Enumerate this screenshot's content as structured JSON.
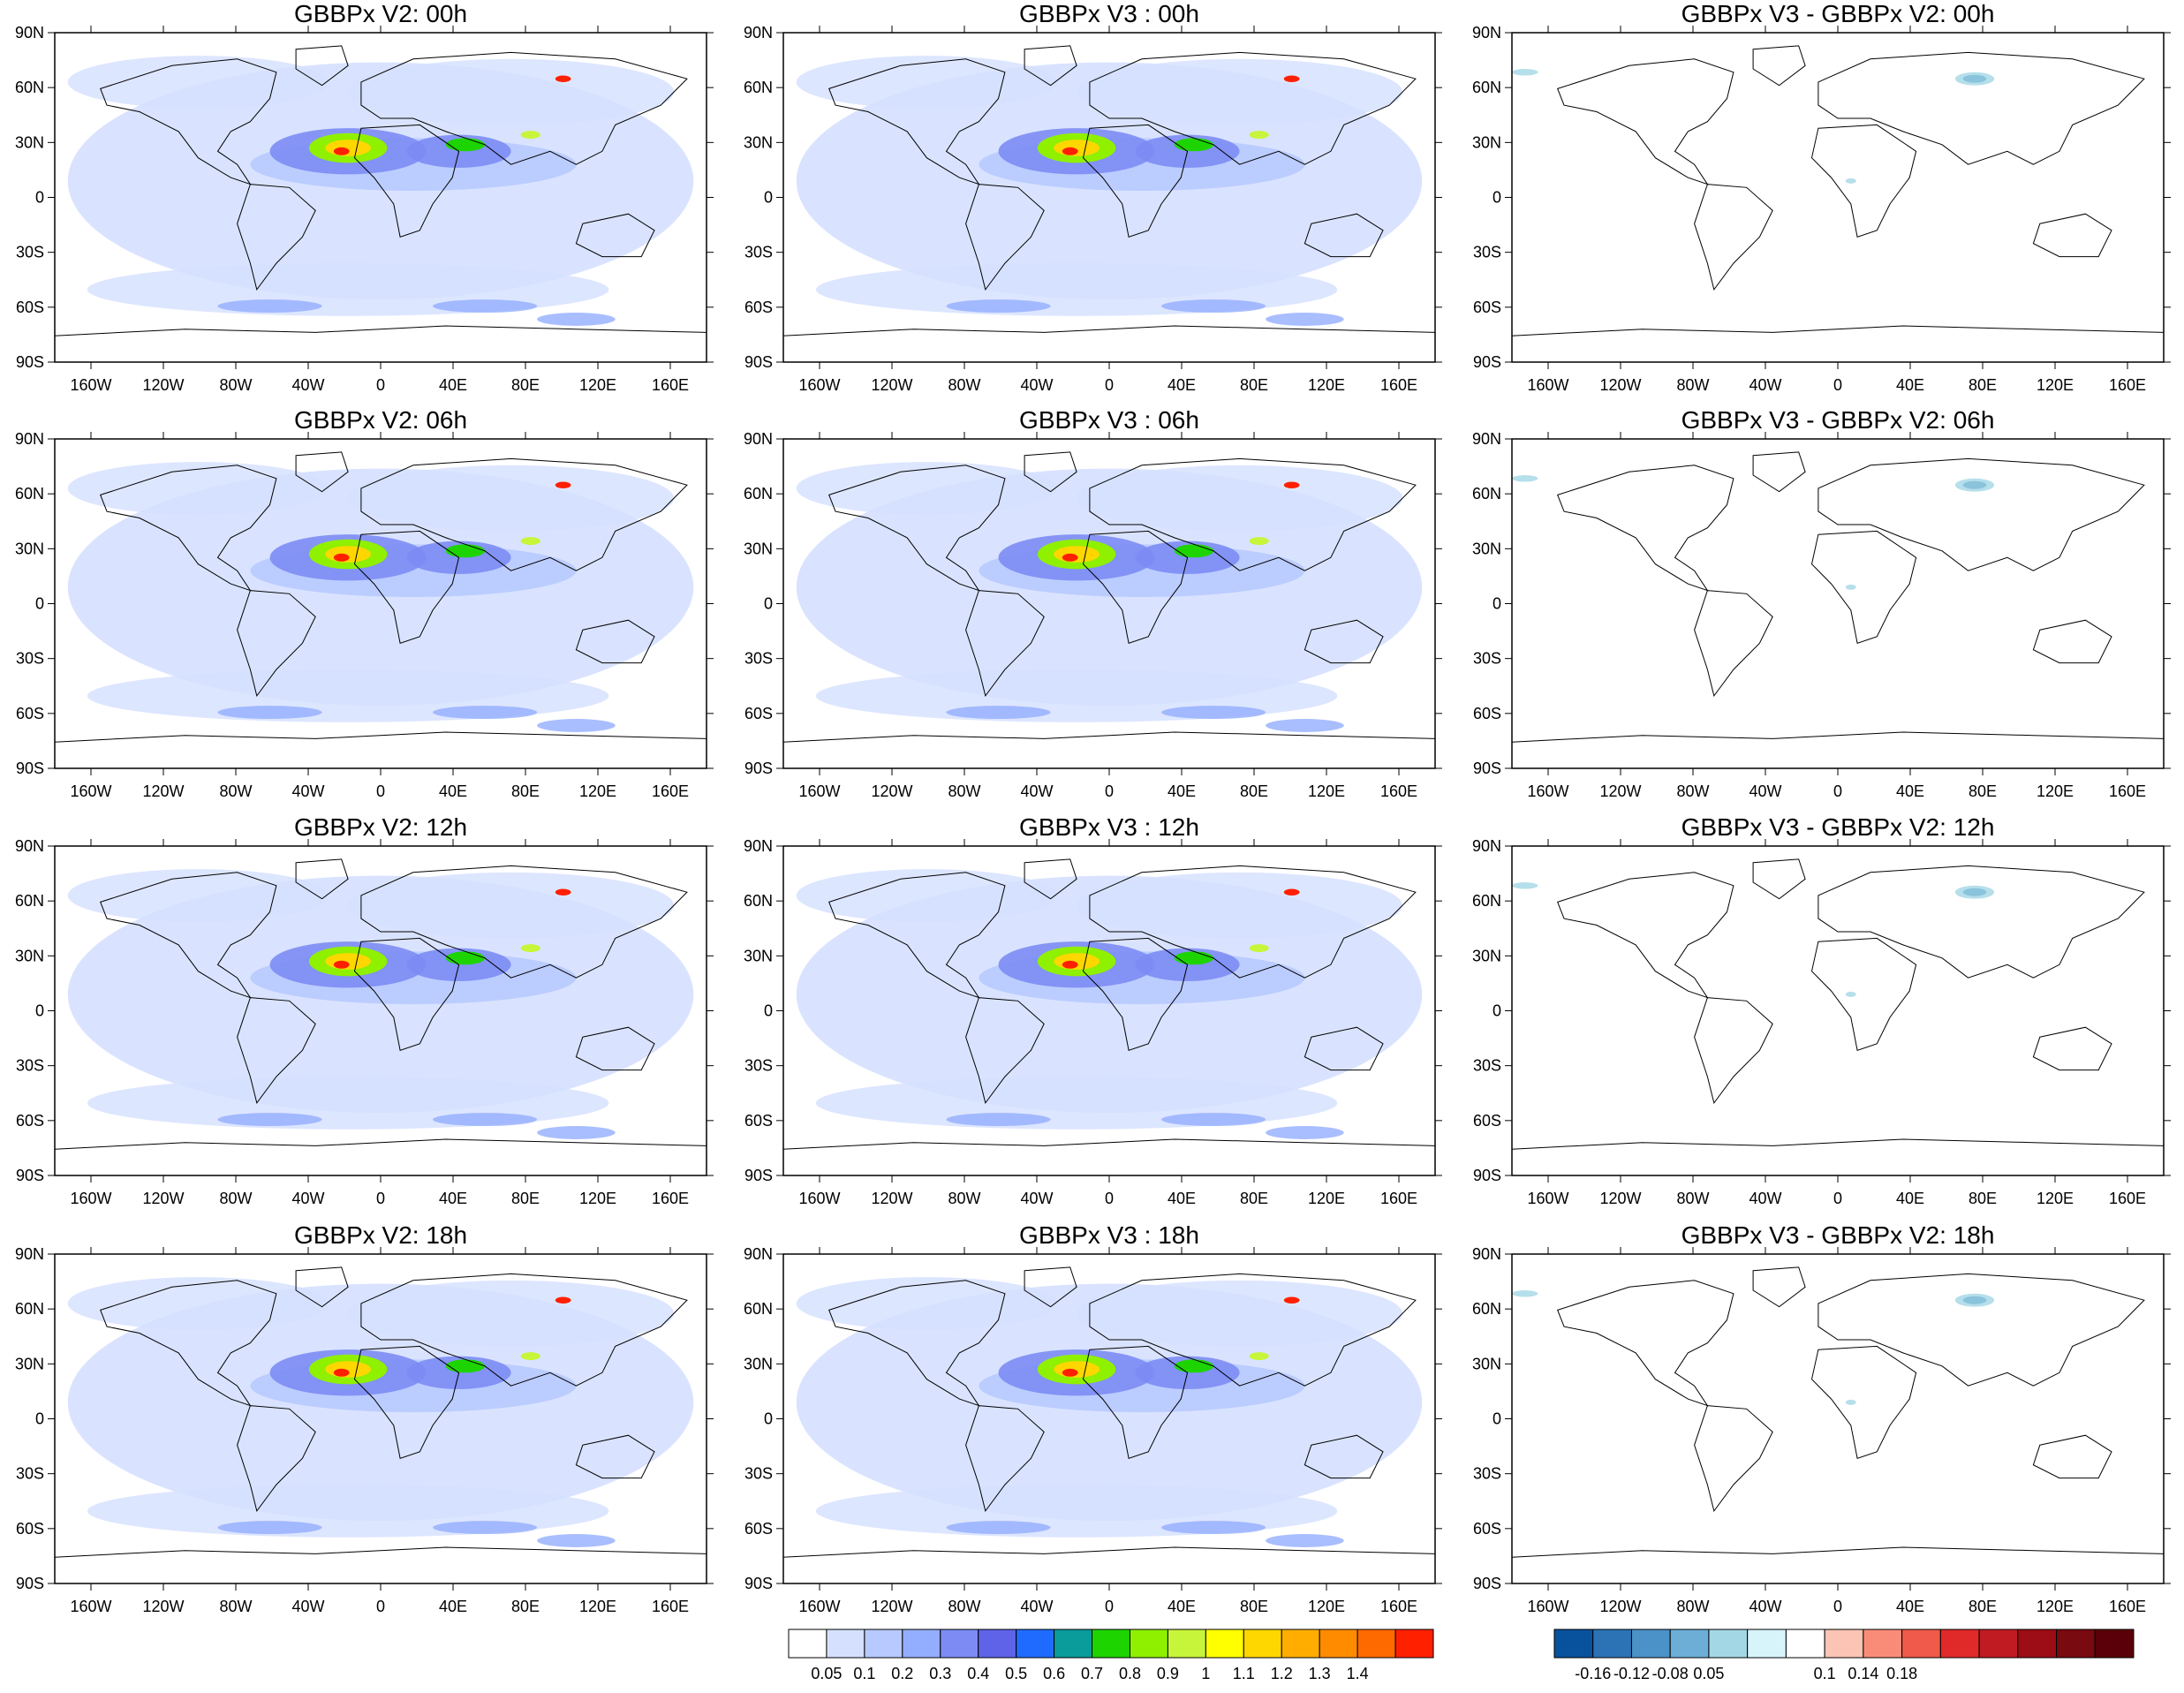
{
  "panels": [
    {
      "title": "GBBPx V2: 00h",
      "kind": "abs"
    },
    {
      "title": "GBBPx V3 : 00h",
      "kind": "abs"
    },
    {
      "title": "GBBPx V3 - GBBPx V2: 00h",
      "kind": "diff"
    },
    {
      "title": "GBBPx V2: 06h",
      "kind": "abs"
    },
    {
      "title": "GBBPx V3 : 06h",
      "kind": "abs"
    },
    {
      "title": "GBBPx V3 - GBBPx V2: 06h",
      "kind": "diff"
    },
    {
      "title": "GBBPx V2: 12h",
      "kind": "abs"
    },
    {
      "title": "GBBPx V3 : 12h",
      "kind": "abs"
    },
    {
      "title": "GBBPx V3 - GBBPx V2: 12h",
      "kind": "diff"
    },
    {
      "title": "GBBPx V2: 18h",
      "kind": "abs"
    },
    {
      "title": "GBBPx V3 : 18h",
      "kind": "abs"
    },
    {
      "title": "GBBPx V3 - GBBPx V2: 18h",
      "kind": "diff"
    }
  ],
  "axes": {
    "lat_labels": [
      "90N",
      "60N",
      "30N",
      "0",
      "30S",
      "60S",
      "90S"
    ],
    "lon_labels": [
      "160W",
      "120W",
      "80W",
      "40W",
      "0",
      "40E",
      "80E",
      "120E",
      "160E"
    ]
  },
  "colorbar_abs": {
    "colors": [
      "#ffffff",
      "#d5e0ff",
      "#b7c9ff",
      "#94aeff",
      "#7c8cf4",
      "#5f63e8",
      "#1f6bff",
      "#0a9c9b",
      "#1ed400",
      "#8ff000",
      "#c7f53a",
      "#ffff00",
      "#ffd700",
      "#ffae00",
      "#ff8c00",
      "#ff6a00",
      "#ff2000"
    ],
    "labels": [
      "0.05",
      "0.1",
      "0.2",
      "0.3",
      "0.4",
      "0.5",
      "0.6",
      "0.7",
      "0.8",
      "0.9",
      "1",
      "1.1",
      "1.2",
      "1.3",
      "1.4"
    ]
  },
  "colorbar_diff": {
    "colors": [
      "#08519c",
      "#2b73b5",
      "#4a92c7",
      "#6daed6",
      "#a3d7e6",
      "#d8f4fb",
      "#ffffff",
      "#fbc4b4",
      "#f98c79",
      "#ef5a4a",
      "#e02a2a",
      "#c01b22",
      "#9c0d16",
      "#780a10",
      "#5a0008"
    ],
    "labels": [
      "-0.16",
      "-0.12",
      "-0.08",
      "0.05",
      "0.1",
      "0.14",
      "0.18"
    ]
  }
}
